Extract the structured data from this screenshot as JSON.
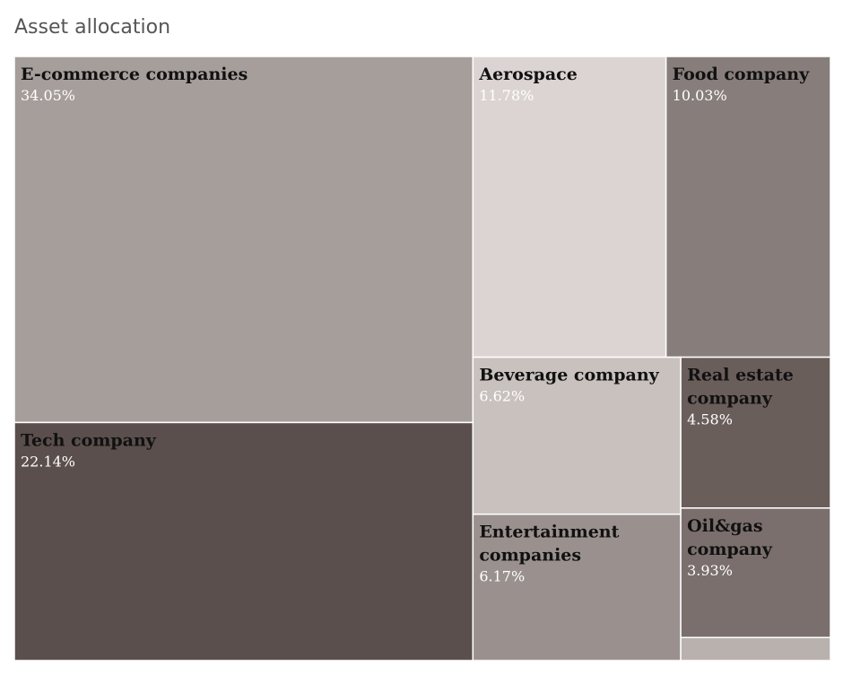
{
  "chart_data": {
    "type": "treemap",
    "title": "Asset allocation",
    "items": [
      {
        "name": "E-commerce companies",
        "lines": [
          "E-commerce companies"
        ],
        "value": 34.05,
        "label": "34.05%",
        "color": "#a69e9b"
      },
      {
        "name": "Tech company",
        "lines": [
          "Tech company"
        ],
        "value": 22.14,
        "label": "22.14%",
        "color": "#5a4f4c"
      },
      {
        "name": "Aerospace",
        "lines": [
          "Aerospace"
        ],
        "value": 11.78,
        "label": "11.78%",
        "color": "#dbd4d2"
      },
      {
        "name": "Food company",
        "lines": [
          "Food company"
        ],
        "value": 10.03,
        "label": "10.03%",
        "color": "#877e7b"
      },
      {
        "name": "Beverage company",
        "lines": [
          "Beverage company"
        ],
        "value": 6.62,
        "label": "6.62%",
        "color": "#c8c1be"
      },
      {
        "name": "Real estate company",
        "lines": [
          "Real estate",
          "company"
        ],
        "value": 4.58,
        "label": "4.58%",
        "color": "#6a5e5b"
      },
      {
        "name": "Entertainment companies",
        "lines": [
          "Entertainment",
          "companies"
        ],
        "value": 6.17,
        "label": "6.17%",
        "color": "#9a918e"
      },
      {
        "name": "Oil&gas company",
        "lines": [
          "Oil&gas",
          "company"
        ],
        "value": 3.93,
        "label": "3.93%",
        "color": "#7a6f6c"
      },
      {
        "name": "",
        "lines": [],
        "value": 0.7,
        "label": "",
        "color": "#b9b1ae"
      }
    ]
  }
}
